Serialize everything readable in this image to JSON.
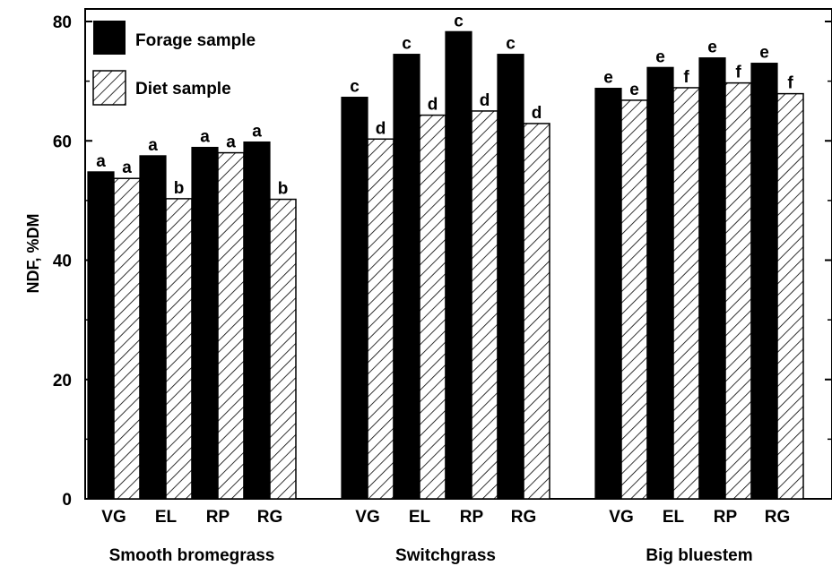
{
  "chart_data": {
    "type": "bar",
    "ylabel": "NDF, %DM",
    "xlabel": "",
    "ylim": [
      0,
      80
    ],
    "yticks": [
      0,
      20,
      40,
      60,
      80
    ],
    "groups": [
      {
        "name": "Smooth bromegrass",
        "categories": [
          "VG",
          "EL",
          "RP",
          "RG"
        ]
      },
      {
        "name": "Switchgrass",
        "categories": [
          "VG",
          "EL",
          "RP",
          "RG"
        ]
      },
      {
        "name": "Big bluestem",
        "categories": [
          "VG",
          "EL",
          "RP",
          "RG"
        ]
      }
    ],
    "series": [
      {
        "name": "Forage sample",
        "fill": "solid",
        "color": "#000000",
        "values": [
          54.8,
          57.5,
          58.9,
          59.8,
          67.3,
          74.5,
          78.3,
          74.5,
          68.8,
          72.3,
          73.9,
          73.0
        ],
        "letters": [
          "a",
          "a",
          "a",
          "a",
          "c",
          "c",
          "c",
          "c",
          "e",
          "e",
          "e",
          "e"
        ]
      },
      {
        "name": "Diet sample",
        "fill": "hatched",
        "color": "#000000",
        "values": [
          53.7,
          50.3,
          58.0,
          50.2,
          60.3,
          64.3,
          65.0,
          62.9,
          66.8,
          68.9,
          69.7,
          67.9
        ],
        "letters": [
          "a",
          "b",
          "a",
          "b",
          "d",
          "d",
          "d",
          "d",
          "e",
          "f",
          "f",
          "f"
        ]
      }
    ],
    "legend": {
      "placement": "top-left"
    },
    "grid": false
  }
}
